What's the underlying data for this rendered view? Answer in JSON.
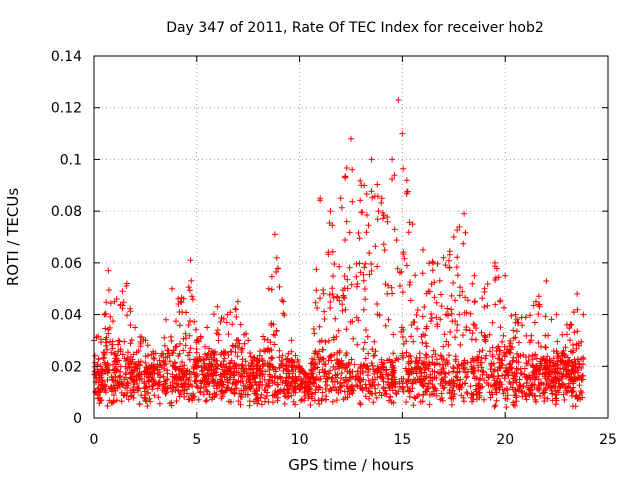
{
  "chart_data": {
    "type": "scatter",
    "title": "Day 347 of 2011, Rate Of TEC Index for receiver hob2",
    "xlabel": "GPS time / hours",
    "ylabel": "ROTI / TECUs",
    "xlim": [
      0,
      25
    ],
    "ylim": [
      0,
      0.14
    ],
    "xticks": [
      "0",
      "5",
      "10",
      "15",
      "20",
      "25"
    ],
    "yticks": [
      "0",
      "0.02",
      "0.04",
      "0.06",
      "0.08",
      "0.1",
      "0.12",
      "0.14"
    ],
    "grid": true,
    "marker": "plus",
    "color": "#ff0000",
    "x_range_of_data": [
      0,
      23.8
    ],
    "envelope": {
      "description_hours": [
        0,
        0.5,
        0.7,
        1.0,
        1.6,
        2.0,
        2.5,
        3.0,
        3.5,
        3.8,
        4.2,
        4.7,
        5.0,
        5.5,
        6.0,
        6.5,
        7.0,
        7.5,
        8.0,
        8.5,
        8.8,
        9.2,
        9.6,
        10.0,
        10.5,
        11.0,
        11.5,
        12.0,
        12.5,
        13.0,
        13.5,
        14.0,
        14.5,
        14.8,
        15.0,
        15.5,
        16.0,
        16.5,
        17.0,
        17.5,
        18.0,
        18.5,
        19.0,
        19.5,
        20.0,
        20.5,
        21.0,
        21.5,
        22.0,
        22.5,
        23.0,
        23.5,
        23.8
      ],
      "max_roti": [
        0.03,
        0.04,
        0.057,
        0.045,
        0.052,
        0.035,
        0.03,
        0.025,
        0.038,
        0.05,
        0.045,
        0.061,
        0.03,
        0.035,
        0.043,
        0.04,
        0.045,
        0.03,
        0.022,
        0.05,
        0.071,
        0.045,
        0.03,
        0.02,
        0.015,
        0.085,
        0.08,
        0.085,
        0.108,
        0.09,
        0.1,
        0.085,
        0.1,
        0.123,
        0.11,
        0.075,
        0.065,
        0.06,
        0.062,
        0.07,
        0.079,
        0.055,
        0.05,
        0.06,
        0.055,
        0.04,
        0.039,
        0.045,
        0.053,
        0.04,
        0.036,
        0.048,
        0.04
      ],
      "typical_low": 0.004
    }
  }
}
